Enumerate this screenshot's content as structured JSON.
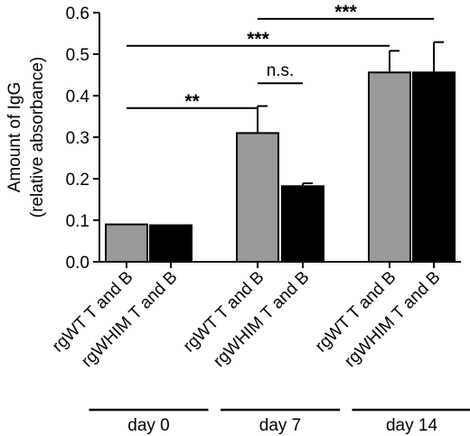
{
  "chart_data": {
    "type": "bar",
    "ylabel_lines": [
      "Amount of IgG",
      "(relative absorbance)"
    ],
    "ylim": [
      0,
      0.6
    ],
    "yticks": [
      0.0,
      0.1,
      0.2,
      0.3,
      0.4,
      0.5,
      0.6
    ],
    "ytick_labels": [
      "0.0",
      "0.1",
      "0.2",
      "0.3",
      "0.4",
      "0.5",
      "0.6"
    ],
    "colors": {
      "rgWT": "#999999",
      "rgWHIM": "#000000"
    },
    "bars": [
      {
        "label": "rgWT T and B",
        "value": 0.09,
        "error": 0.0,
        "color": "#999999"
      },
      {
        "label": "rgWHIM T and B",
        "value": 0.088,
        "error": 0.0,
        "color": "#000000"
      },
      {
        "label": "rgWT T and B",
        "value": 0.31,
        "error": 0.065,
        "color": "#999999"
      },
      {
        "label": "rgWHIM T and B",
        "value": 0.182,
        "error": 0.007,
        "color": "#000000"
      },
      {
        "label": "rgWT T and B",
        "value": 0.456,
        "error": 0.052,
        "color": "#999999"
      },
      {
        "label": "rgWHIM T and B",
        "value": 0.456,
        "error": 0.073,
        "color": "#000000"
      }
    ],
    "groups": [
      {
        "label": "day 0",
        "bars": [
          0,
          1
        ]
      },
      {
        "label": "day 7",
        "bars": [
          2,
          3
        ]
      },
      {
        "label": "day 14",
        "bars": [
          4,
          5
        ]
      }
    ],
    "significance": [
      {
        "from": 0,
        "to": 2,
        "y": 0.37,
        "label": "**"
      },
      {
        "from": 2,
        "to": 3,
        "y": 0.43,
        "label": "n.s."
      },
      {
        "from": 0,
        "to": 4,
        "y": 0.52,
        "label": "***"
      },
      {
        "from": 2,
        "to": 5,
        "y": 0.585,
        "label": "***"
      }
    ],
    "grid": false,
    "legend": "none"
  }
}
